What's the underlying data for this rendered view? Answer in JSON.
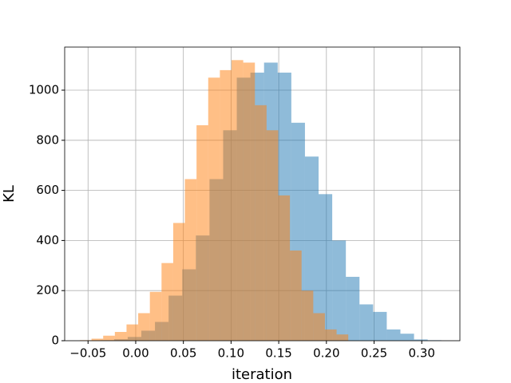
{
  "chart_data": {
    "type": "histogram",
    "xlabel": "iteration",
    "ylabel": "KL",
    "series": [
      {
        "color": "#1f77b4",
        "opacity": 0.5,
        "bins": [
          -0.037,
          -0.0227,
          -0.0084,
          0.0059,
          0.0202,
          0.0345,
          0.0488,
          0.0631,
          0.0774,
          0.0917,
          0.106,
          0.1203,
          0.1346,
          0.1489,
          0.1632,
          0.1775,
          0.1918,
          0.2061,
          0.2204,
          0.2347,
          0.249,
          0.2633,
          0.2776,
          0.2919,
          0.3062,
          0.3205
        ],
        "values": [
          2,
          6,
          15,
          40,
          75,
          180,
          285,
          420,
          645,
          840,
          1050,
          1070,
          1110,
          1070,
          870,
          735,
          585,
          400,
          255,
          145,
          115,
          45,
          28,
          5,
          2
        ]
      },
      {
        "color": "#ff7f0e",
        "opacity": 0.5,
        "bins": [
          -0.0586,
          -0.04636,
          -0.03412,
          -0.02188,
          -0.00964,
          0.0026,
          0.01484,
          0.02708,
          0.03932,
          0.05156,
          0.0638,
          0.07604,
          0.08828,
          0.10052,
          0.11276,
          0.125,
          0.13724,
          0.14948,
          0.16172,
          0.17396,
          0.1862,
          0.19844,
          0.21068,
          0.22292
        ],
        "values": [
          2,
          8,
          20,
          35,
          65,
          110,
          195,
          310,
          470,
          645,
          860,
          1050,
          1080,
          1120,
          1110,
          940,
          840,
          580,
          360,
          200,
          110,
          45,
          25
        ]
      }
    ],
    "xlim": [
      -0.0745,
      0.34
    ],
    "ylim": [
      0,
      1172
    ],
    "xticks": [
      {
        "value": -0.05,
        "label": "−0.05"
      },
      {
        "value": 0,
        "label": "0.00"
      },
      {
        "value": 0.05,
        "label": "0.05"
      },
      {
        "value": 0.1,
        "label": "0.10"
      },
      {
        "value": 0.15,
        "label": "0.15"
      },
      {
        "value": 0.2,
        "label": "0.20"
      },
      {
        "value": 0.25,
        "label": "0.25"
      },
      {
        "value": 0.3,
        "label": "0.30"
      }
    ],
    "yticks": [
      0,
      200,
      400,
      600,
      800,
      1000
    ],
    "grid": true
  }
}
